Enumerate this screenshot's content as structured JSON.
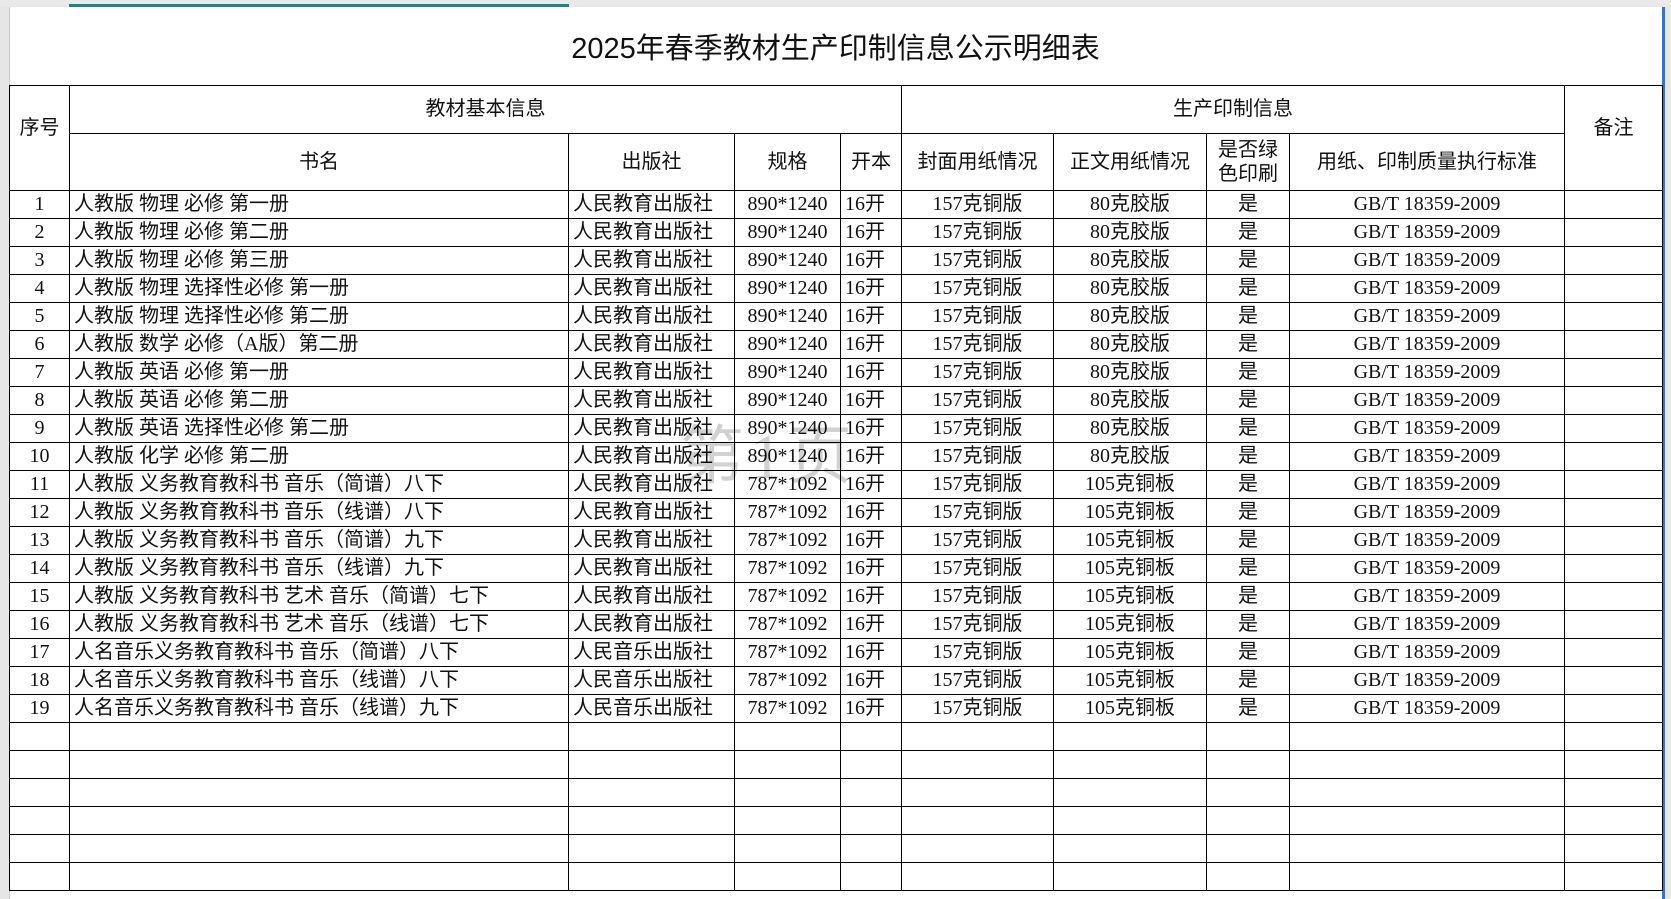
{
  "title": "2025年春季教材生产印制信息公示明细表",
  "watermark": "第1页",
  "headers": {
    "seq": "序号",
    "group_basic": "教材基本信息",
    "group_print": "生产印制信息",
    "remark": "备注",
    "book": "书名",
    "publisher": "出版社",
    "spec": "规格",
    "format": "开本",
    "cover": "封面用纸情况",
    "body": "正文用纸情况",
    "green": "是否绿色印刷",
    "standard": "用纸、印制质量执行标准"
  },
  "rows": [
    {
      "seq": "1",
      "book": "人教版 物理 必修 第一册",
      "publisher": "人民教育出版社",
      "spec": "890*1240",
      "format": "16开",
      "cover": "157克铜版",
      "body": "80克胶版",
      "green": "是",
      "standard": "GB/T 18359-2009",
      "remark": ""
    },
    {
      "seq": "2",
      "book": "人教版 物理 必修 第二册",
      "publisher": "人民教育出版社",
      "spec": "890*1240",
      "format": "16开",
      "cover": "157克铜版",
      "body": "80克胶版",
      "green": "是",
      "standard": "GB/T 18359-2009",
      "remark": ""
    },
    {
      "seq": "3",
      "book": "人教版 物理 必修 第三册",
      "publisher": "人民教育出版社",
      "spec": "890*1240",
      "format": "16开",
      "cover": "157克铜版",
      "body": "80克胶版",
      "green": "是",
      "standard": "GB/T 18359-2009",
      "remark": ""
    },
    {
      "seq": "4",
      "book": "人教版 物理 选择性必修 第一册",
      "publisher": "人民教育出版社",
      "spec": "890*1240",
      "format": "16开",
      "cover": "157克铜版",
      "body": "80克胶版",
      "green": "是",
      "standard": "GB/T 18359-2009",
      "remark": ""
    },
    {
      "seq": "5",
      "book": "人教版 物理 选择性必修 第二册",
      "publisher": "人民教育出版社",
      "spec": "890*1240",
      "format": "16开",
      "cover": "157克铜版",
      "body": "80克胶版",
      "green": "是",
      "standard": "GB/T 18359-2009",
      "remark": ""
    },
    {
      "seq": "6",
      "book": "人教版 数学 必修（A版）第二册",
      "publisher": "人民教育出版社",
      "spec": "890*1240",
      "format": "16开",
      "cover": "157克铜版",
      "body": "80克胶版",
      "green": "是",
      "standard": "GB/T 18359-2009",
      "remark": ""
    },
    {
      "seq": "7",
      "book": "人教版 英语 必修 第一册",
      "publisher": "人民教育出版社",
      "spec": "890*1240",
      "format": "16开",
      "cover": "157克铜版",
      "body": "80克胶版",
      "green": "是",
      "standard": "GB/T 18359-2009",
      "remark": ""
    },
    {
      "seq": "8",
      "book": "人教版 英语 必修 第二册",
      "publisher": "人民教育出版社",
      "spec": "890*1240",
      "format": "16开",
      "cover": "157克铜版",
      "body": "80克胶版",
      "green": "是",
      "standard": "GB/T 18359-2009",
      "remark": ""
    },
    {
      "seq": "9",
      "book": "人教版 英语 选择性必修 第二册",
      "publisher": "人民教育出版社",
      "spec": "890*1240",
      "format": "16开",
      "cover": "157克铜版",
      "body": "80克胶版",
      "green": "是",
      "standard": "GB/T 18359-2009",
      "remark": ""
    },
    {
      "seq": "10",
      "book": "人教版 化学 必修 第二册",
      "publisher": "人民教育出版社",
      "spec": "890*1240",
      "format": "16开",
      "cover": "157克铜版",
      "body": "80克胶版",
      "green": "是",
      "standard": "GB/T 18359-2009",
      "remark": ""
    },
    {
      "seq": "11",
      "book": "人教版 义务教育教科书 音乐（简谱）八下",
      "publisher": "人民教育出版社",
      "spec": "787*1092",
      "format": "16开",
      "cover": "157克铜版",
      "body": "105克铜板",
      "green": "是",
      "standard": "GB/T 18359-2009",
      "remark": ""
    },
    {
      "seq": "12",
      "book": "人教版 义务教育教科书 音乐（线谱）八下",
      "publisher": "人民教育出版社",
      "spec": "787*1092",
      "format": "16开",
      "cover": "157克铜版",
      "body": "105克铜板",
      "green": "是",
      "standard": "GB/T 18359-2009",
      "remark": ""
    },
    {
      "seq": "13",
      "book": "人教版 义务教育教科书 音乐（简谱）九下",
      "publisher": "人民教育出版社",
      "spec": "787*1092",
      "format": "16开",
      "cover": "157克铜版",
      "body": "105克铜板",
      "green": "是",
      "standard": "GB/T 18359-2009",
      "remark": ""
    },
    {
      "seq": "14",
      "book": "人教版 义务教育教科书 音乐（线谱）九下",
      "publisher": "人民教育出版社",
      "spec": "787*1092",
      "format": "16开",
      "cover": "157克铜版",
      "body": "105克铜板",
      "green": "是",
      "standard": "GB/T 18359-2009",
      "remark": ""
    },
    {
      "seq": "15",
      "book": "人教版 义务教育教科书 艺术 音乐（简谱）七下",
      "publisher": "人民教育出版社",
      "spec": "787*1092",
      "format": "16开",
      "cover": "157克铜版",
      "body": "105克铜板",
      "green": "是",
      "standard": "GB/T 18359-2009",
      "remark": ""
    },
    {
      "seq": "16",
      "book": "人教版 义务教育教科书 艺术 音乐（线谱）七下",
      "publisher": "人民教育出版社",
      "spec": "787*1092",
      "format": "16开",
      "cover": "157克铜版",
      "body": "105克铜板",
      "green": "是",
      "standard": "GB/T 18359-2009",
      "remark": ""
    },
    {
      "seq": "17",
      "book": "人名音乐义务教育教科书  音乐（简谱）八下",
      "publisher": "人民音乐出版社",
      "spec": "787*1092",
      "format": "16开",
      "cover": "157克铜版",
      "body": "105克铜板",
      "green": "是",
      "standard": "GB/T 18359-2009",
      "remark": ""
    },
    {
      "seq": "18",
      "book": "人名音乐义务教育教科书  音乐（线谱）八下",
      "publisher": "人民音乐出版社",
      "spec": "787*1092",
      "format": "16开",
      "cover": "157克铜版",
      "body": "105克铜板",
      "green": "是",
      "standard": "GB/T 18359-2009",
      "remark": ""
    },
    {
      "seq": "19",
      "book": "人名音乐义务教育教科书  音乐（线谱）九下",
      "publisher": "人民音乐出版社",
      "spec": "787*1092",
      "format": "16开",
      "cover": "157克铜版",
      "body": "105克铜板",
      "green": "是",
      "standard": "GB/T 18359-2009",
      "remark": ""
    }
  ]
}
